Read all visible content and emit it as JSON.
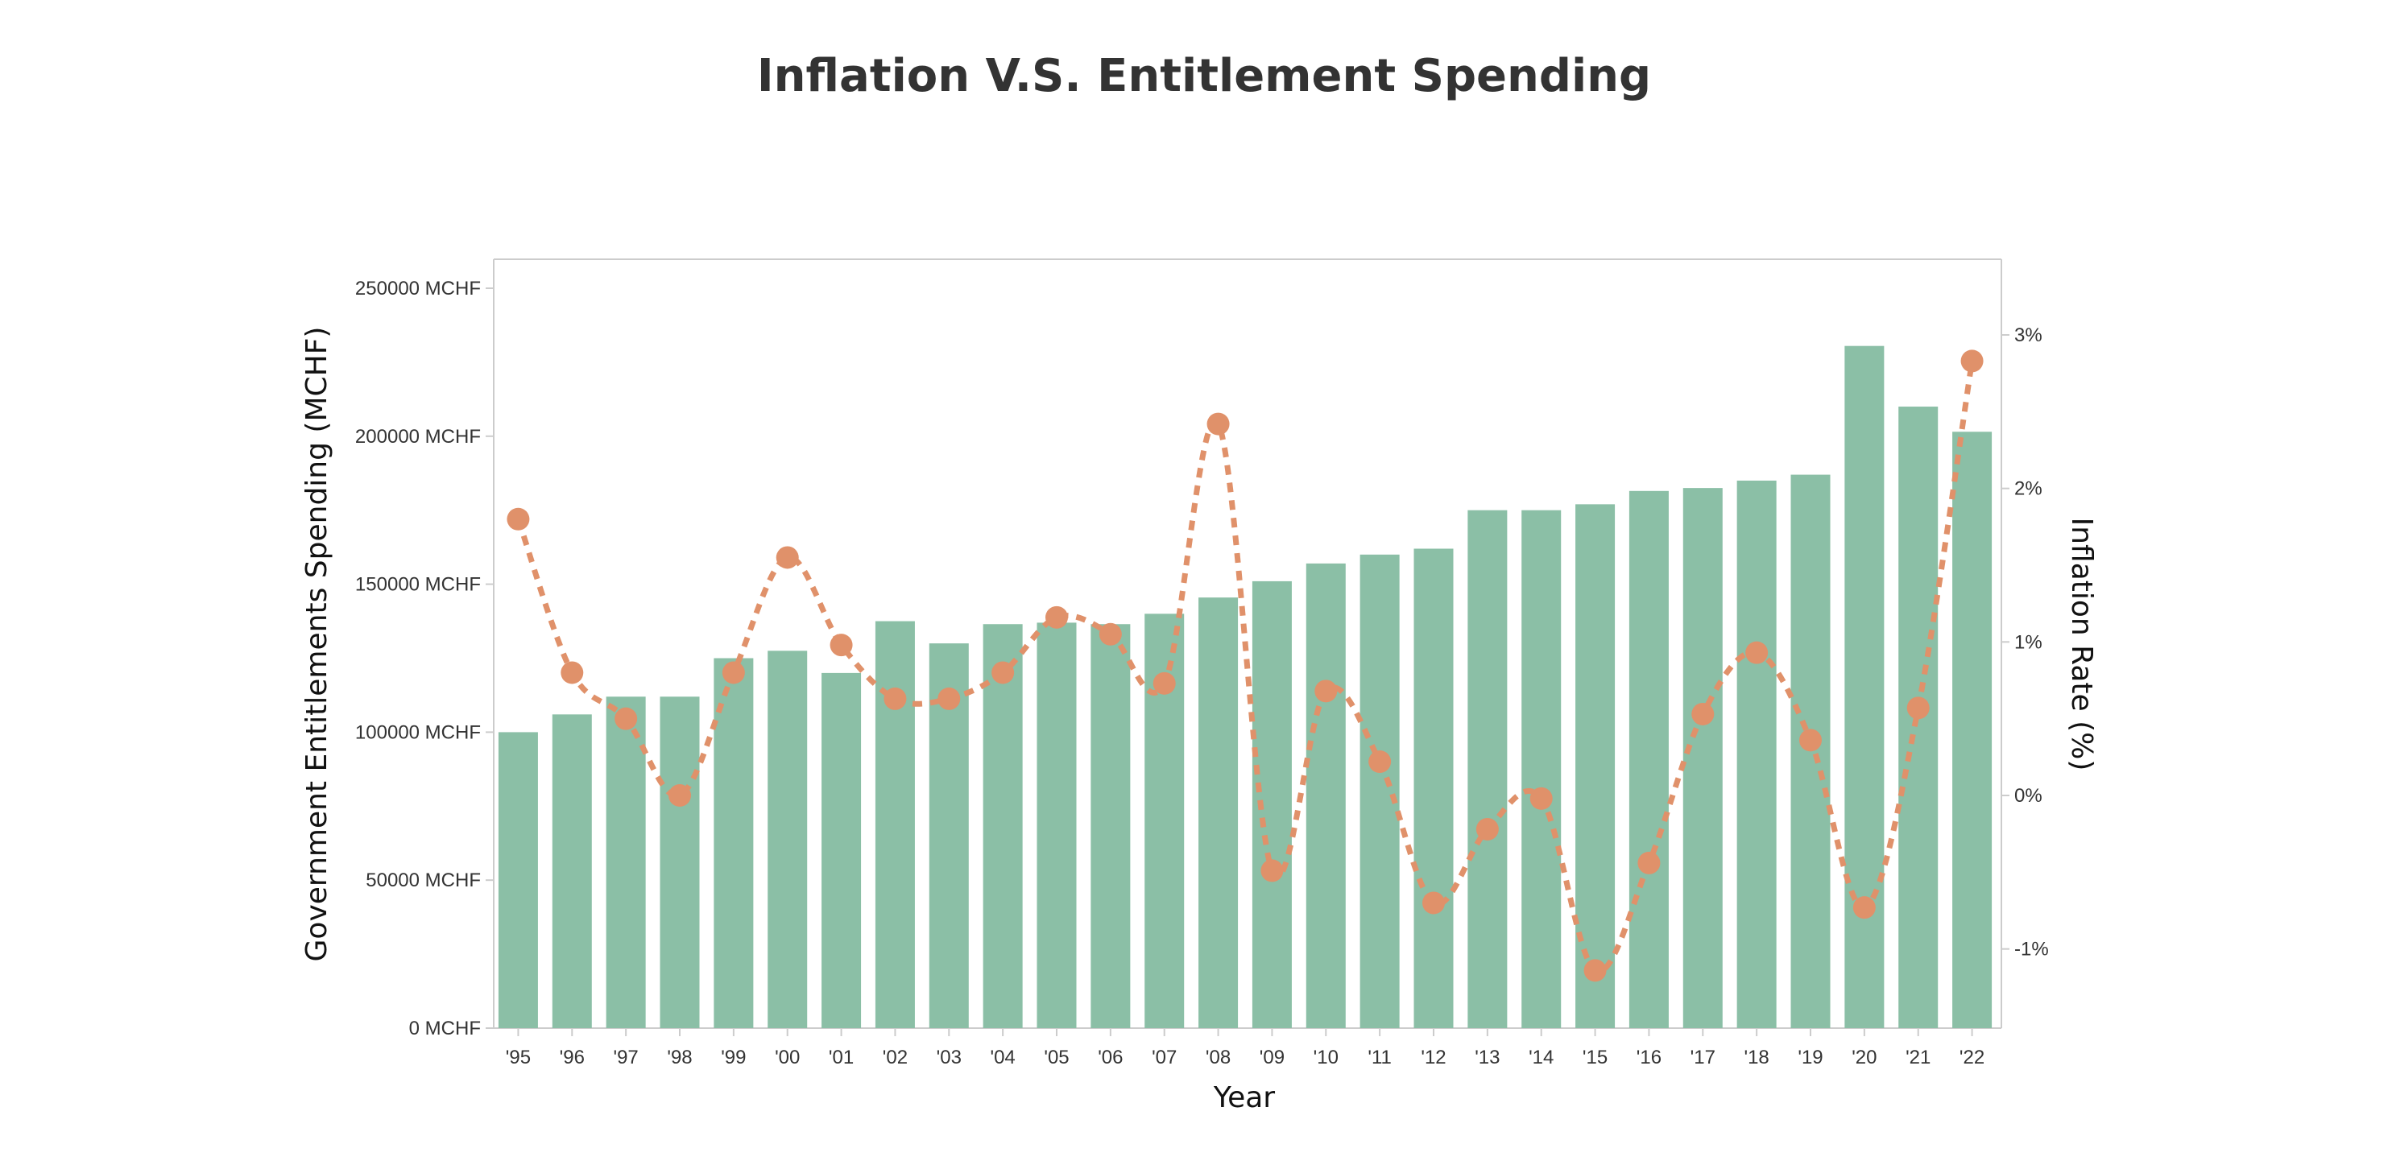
{
  "chart_data": {
    "type": "bar",
    "title": "Inflation V.S. Entitlement Spending",
    "xlabel": "Year",
    "ylabel": "Government Entitlements Spending (MCHF)",
    "y2label": "Inflation Rate (%)",
    "categories": [
      "'95",
      "'96",
      "'97",
      "'98",
      "'99",
      "'00",
      "'01",
      "'02",
      "'03",
      "'04",
      "'05",
      "'06",
      "'07",
      "'08",
      "'09",
      "'10",
      "'11",
      "'12",
      "'13",
      "'14",
      "'15",
      "'16",
      "'17",
      "'18",
      "'19",
      "'20",
      "'21",
      "'22"
    ],
    "series": [
      {
        "type": "bar",
        "axis": "left",
        "values": [
          100000,
          106000,
          112000,
          112000,
          125000,
          127500,
          120000,
          137500,
          130000,
          136500,
          137000,
          136500,
          140000,
          145500,
          151000,
          157000,
          160000,
          162000,
          175000,
          175000,
          177000,
          181500,
          182500,
          185000,
          187000,
          230500,
          210000,
          201500
        ]
      },
      {
        "type": "line",
        "axis": "right",
        "values": [
          1.8,
          0.8,
          0.5,
          0.0,
          0.8,
          1.55,
          0.98,
          0.63,
          0.63,
          0.8,
          1.16,
          1.05,
          0.73,
          2.42,
          -0.49,
          0.68,
          0.22,
          -0.7,
          -0.22,
          -0.02,
          -1.14,
          -0.44,
          0.53,
          0.93,
          0.36,
          -0.73,
          0.57,
          2.83
        ]
      }
    ],
    "ylim": [
      0,
      260000
    ],
    "y2lim": [
      -1.5,
      3.5
    ],
    "y_ticks": [
      "0 MCHF",
      "50000 MCHF",
      "100000 MCHF",
      "150000 MCHF",
      "200000 MCHF",
      "250000 MCHF"
    ],
    "y2_ticks": [
      "-1%",
      "0%",
      "1%",
      "2%",
      "3%"
    ],
    "grid": false,
    "legend": "none",
    "colors": {
      "bar": "#8bbfa6",
      "line": "#e0916a",
      "axis": "#cccccc",
      "text": "#333333"
    }
  }
}
